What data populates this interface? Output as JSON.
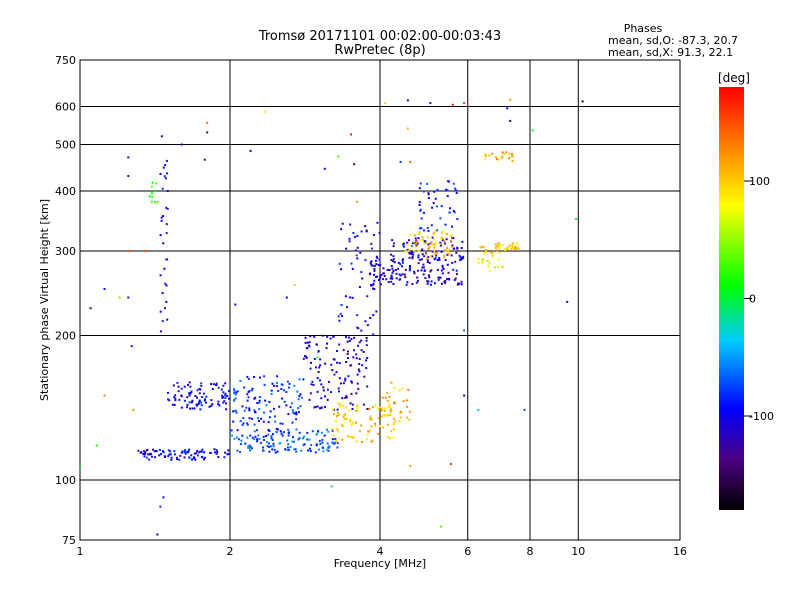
{
  "header": {
    "title": "Tromsø 20171101 00:02:00-00:03:43",
    "subtitle": "RwPretec (8p)"
  },
  "stats": {
    "heading": "Phases",
    "line_o": "mean, sd,O: -87.3, 20.7",
    "line_x": "mean, sd,X:  91.3, 22.1"
  },
  "chart_data": {
    "type": "scatter",
    "title": "Tromsø 20171101 00:02:00-00:03:43",
    "subtitle": "RwPretec (8p)",
    "xlabel": "Frequency [MHz]",
    "ylabel": "Stationary phase Virtual Height [km]",
    "xscale": "log",
    "yscale": "log",
    "xlim": [
      1,
      16
    ],
    "ylim": [
      75,
      750
    ],
    "xticks": [
      1,
      2,
      4,
      6,
      8,
      10,
      16
    ],
    "xtick_labels": [
      "1",
      "2",
      "4",
      "6",
      "8",
      "10",
      "16"
    ],
    "yticks": [
      75,
      100,
      200,
      300,
      400,
      500,
      600,
      750
    ],
    "ytick_labels": [
      "75",
      "100",
      "200",
      "300",
      "400",
      "500",
      "600",
      "750"
    ],
    "grid": true,
    "colorbar": {
      "label": "[deg]",
      "range": [
        -180,
        180
      ],
      "ticks": [
        100,
        0,
        -100
      ],
      "tick_labels": [
        "100",
        "0",
        "-100"
      ]
    },
    "clusters": [
      {
        "f_min": 1.3,
        "f_max": 2.0,
        "h_min": 110,
        "h_max": 116,
        "phase": -100,
        "n": 90
      },
      {
        "f_min": 2.0,
        "f_max": 3.3,
        "h_min": 114,
        "h_max": 128,
        "phase": -70,
        "n": 140
      },
      {
        "f_min": 1.5,
        "f_max": 2.0,
        "h_min": 140,
        "h_max": 160,
        "phase": -100,
        "n": 90
      },
      {
        "f_min": 2.0,
        "f_max": 2.8,
        "h_min": 130,
        "h_max": 165,
        "phase": -80,
        "n": 110
      },
      {
        "f_min": 2.8,
        "f_max": 3.8,
        "h_min": 140,
        "h_max": 200,
        "phase": -110,
        "n": 130
      },
      {
        "f_min": 3.2,
        "f_max": 4.3,
        "h_min": 120,
        "h_max": 145,
        "phase": 100,
        "n": 90
      },
      {
        "f_min": 4.0,
        "f_max": 4.6,
        "h_min": 130,
        "h_max": 160,
        "phase": 110,
        "n": 30
      },
      {
        "f_min": 3.3,
        "f_max": 4.0,
        "h_min": 200,
        "h_max": 345,
        "phase": -100,
        "n": 60
      },
      {
        "f_min": 3.8,
        "f_max": 4.3,
        "h_min": 255,
        "h_max": 290,
        "phase": -110,
        "n": 40
      },
      {
        "f_min": 4.2,
        "f_max": 5.9,
        "h_min": 255,
        "h_max": 320,
        "phase": -110,
        "n": 170
      },
      {
        "f_min": 4.5,
        "f_max": 5.6,
        "h_min": 290,
        "h_max": 330,
        "phase": 100,
        "n": 60
      },
      {
        "f_min": 4.8,
        "f_max": 5.8,
        "h_min": 330,
        "h_max": 420,
        "phase": -90,
        "n": 45
      },
      {
        "f_min": 6.8,
        "f_max": 7.6,
        "h_min": 300,
        "h_max": 312,
        "phase": 100,
        "n": 30
      },
      {
        "f_min": 6.3,
        "f_max": 7.1,
        "h_min": 270,
        "h_max": 310,
        "phase": 90,
        "n": 25
      },
      {
        "f_min": 6.5,
        "f_max": 7.5,
        "h_min": 462,
        "h_max": 482,
        "phase": 110,
        "n": 20
      },
      {
        "f_min": 1.45,
        "f_max": 1.5,
        "h_min": 200,
        "h_max": 470,
        "phase": -100,
        "n": 30
      },
      {
        "f_min": 1.38,
        "f_max": 1.45,
        "h_min": 360,
        "h_max": 420,
        "phase": 20,
        "n": 10
      }
    ],
    "sparse_points": [
      {
        "x": 1.05,
        "y": 228,
        "phase": -120
      },
      {
        "x": 1.12,
        "y": 250,
        "phase": -90
      },
      {
        "x": 1.08,
        "y": 118,
        "phase": 20
      },
      {
        "x": 1.0,
        "y": 107,
        "phase": 10
      },
      {
        "x": 1.25,
        "y": 470,
        "phase": -120
      },
      {
        "x": 1.25,
        "y": 430,
        "phase": -130
      },
      {
        "x": 1.26,
        "y": 300,
        "phase": 150
      },
      {
        "x": 1.25,
        "y": 240,
        "phase": -110
      },
      {
        "x": 1.27,
        "y": 190,
        "phase": -90
      },
      {
        "x": 1.28,
        "y": 140,
        "phase": 120
      },
      {
        "x": 1.46,
        "y": 520,
        "phase": -110
      },
      {
        "x": 1.5,
        "y": 400,
        "phase": -100
      },
      {
        "x": 1.45,
        "y": 88,
        "phase": -80
      },
      {
        "x": 1.47,
        "y": 92,
        "phase": -110
      },
      {
        "x": 1.43,
        "y": 77,
        "phase": -100
      },
      {
        "x": 1.6,
        "y": 500,
        "phase": -110
      },
      {
        "x": 1.8,
        "y": 555,
        "phase": 140
      },
      {
        "x": 1.8,
        "y": 530,
        "phase": -150
      },
      {
        "x": 1.78,
        "y": 465,
        "phase": -140
      },
      {
        "x": 2.2,
        "y": 485,
        "phase": -100
      },
      {
        "x": 2.35,
        "y": 585,
        "phase": 90
      },
      {
        "x": 2.05,
        "y": 232,
        "phase": -110
      },
      {
        "x": 2.6,
        "y": 240,
        "phase": -90
      },
      {
        "x": 2.7,
        "y": 255,
        "phase": 60
      },
      {
        "x": 3.0,
        "y": 180,
        "phase": 20
      },
      {
        "x": 3.3,
        "y": 472,
        "phase": 30
      },
      {
        "x": 3.5,
        "y": 525,
        "phase": 170
      },
      {
        "x": 3.55,
        "y": 455,
        "phase": -140
      },
      {
        "x": 3.6,
        "y": 380,
        "phase": 120
      },
      {
        "x": 3.1,
        "y": 445,
        "phase": -100
      },
      {
        "x": 3.2,
        "y": 97,
        "phase": -20
      },
      {
        "x": 4.1,
        "y": 610,
        "phase": 100
      },
      {
        "x": 4.55,
        "y": 618,
        "phase": -110
      },
      {
        "x": 4.55,
        "y": 540,
        "phase": 110
      },
      {
        "x": 4.6,
        "y": 460,
        "phase": 140
      },
      {
        "x": 4.4,
        "y": 460,
        "phase": -80
      },
      {
        "x": 5.05,
        "y": 610,
        "phase": -120
      },
      {
        "x": 5.6,
        "y": 605,
        "phase": 170
      },
      {
        "x": 5.9,
        "y": 610,
        "phase": 160
      },
      {
        "x": 5.9,
        "y": 205,
        "phase": -60
      },
      {
        "x": 5.3,
        "y": 80,
        "phase": 30
      },
      {
        "x": 5.55,
        "y": 108,
        "phase": 160
      },
      {
        "x": 4.6,
        "y": 107,
        "phase": 120
      },
      {
        "x": 5.9,
        "y": 150,
        "phase": -120
      },
      {
        "x": 6.3,
        "y": 140,
        "phase": -40
      },
      {
        "x": 7.2,
        "y": 595,
        "phase": -100
      },
      {
        "x": 7.3,
        "y": 620,
        "phase": 120
      },
      {
        "x": 7.3,
        "y": 560,
        "phase": -150
      },
      {
        "x": 8.1,
        "y": 535,
        "phase": 10
      },
      {
        "x": 10.2,
        "y": 615,
        "phase": -160
      },
      {
        "x": 9.9,
        "y": 350,
        "phase": 10
      },
      {
        "x": 9.5,
        "y": 235,
        "phase": -110
      },
      {
        "x": 7.8,
        "y": 140,
        "phase": -70
      },
      {
        "x": 1.12,
        "y": 150,
        "phase": 130
      },
      {
        "x": 1.35,
        "y": 300,
        "phase": 150
      },
      {
        "x": 1.2,
        "y": 240,
        "phase": 40
      }
    ]
  }
}
